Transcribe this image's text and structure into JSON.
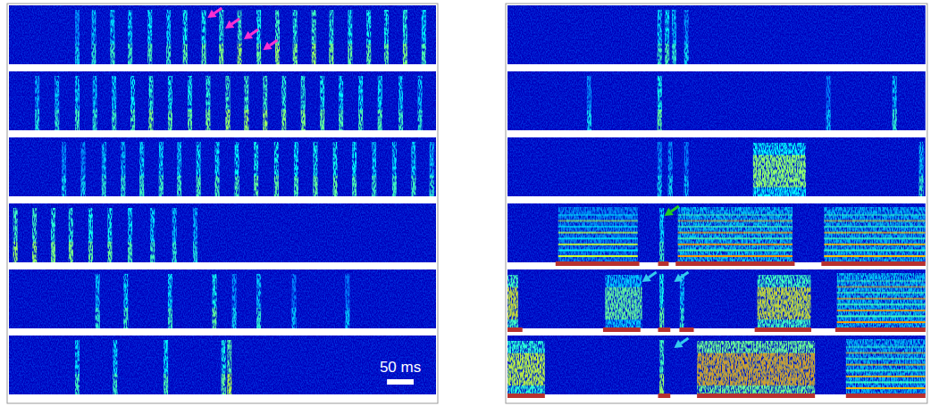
{
  "chart_data": [
    {
      "type": "spectrogram",
      "xlim": [
        0,
        800
      ],
      "tick_labels": false,
      "scale_bar": {
        "value": 50,
        "label": "50 ms"
      },
      "rows": [
        {
          "pulse_times": [
            128,
            159,
            194,
            227,
            264,
            299,
            330,
            365,
            398,
            432,
            468,
            503,
            536,
            571,
            604,
            639,
            674,
            707,
            742,
            777
          ],
          "pulse_levels": [
            0.35,
            0.45,
            0.5,
            0.5,
            0.55,
            0.5,
            0.6,
            0.6,
            0.65,
            0.7,
            0.6,
            0.7,
            0.65,
            0.7,
            0.65,
            0.6,
            0.6,
            0.6,
            0.65,
            0.55
          ],
          "arrows": [
            {
              "time": 372,
              "color": "#ff2fd0"
            },
            {
              "time": 405,
              "color": "#ff2fd0"
            },
            {
              "time": 440,
              "color": "#ff2fd0"
            },
            {
              "time": 476,
              "color": "#ff2fd0"
            }
          ]
        },
        {
          "pulse_times": [
            53,
            90,
            128,
            161,
            197,
            232,
            266,
            302,
            339,
            373,
            410,
            445,
            480,
            515,
            551,
            587,
            622,
            659,
            695,
            734,
            770
          ],
          "pulse_levels": [
            0.4,
            0.45,
            0.5,
            0.45,
            0.5,
            0.55,
            0.65,
            0.6,
            0.6,
            0.65,
            0.7,
            0.7,
            0.7,
            0.65,
            0.65,
            0.6,
            0.55,
            0.55,
            0.55,
            0.5,
            0.45
          ]
        },
        {
          "pulse_times": [
            103,
            139,
            178,
            214,
            249,
            285,
            319,
            355,
            390,
            427,
            463,
            501,
            538,
            574,
            611,
            647,
            684,
            722,
            758,
            792
          ],
          "pulse_levels": [
            0.35,
            0.35,
            0.45,
            0.45,
            0.5,
            0.5,
            0.5,
            0.55,
            0.55,
            0.55,
            0.6,
            0.6,
            0.55,
            0.6,
            0.6,
            0.55,
            0.5,
            0.5,
            0.5,
            0.45
          ]
        },
        {
          "pulse_times": [
            12,
            48,
            83,
            116,
            153,
            189,
            227,
            269,
            310,
            349
          ],
          "pulse_levels": [
            0.7,
            0.7,
            0.65,
            0.65,
            0.6,
            0.6,
            0.55,
            0.5,
            0.45,
            0.4
          ]
        },
        {
          "pulse_times": [
            166,
            219,
            302,
            385,
            422,
            468,
            534,
            634
          ],
          "pulse_levels": [
            0.45,
            0.5,
            0.5,
            0.6,
            0.35,
            0.45,
            0.3,
            0.3
          ]
        },
        {
          "pulse_times": [
            128,
            199,
            294,
            402,
            413
          ],
          "pulse_levels": [
            0.5,
            0.5,
            0.55,
            0.6,
            0.75
          ]
        }
      ]
    },
    {
      "type": "spectrogram",
      "xlim": [
        0,
        783
      ],
      "tick_labels": false,
      "rows": [
        {
          "pulse_times": [
            285,
            299,
            312,
            335
          ],
          "pulse_levels": [
            0.5,
            0.55,
            0.45,
            0.35
          ]
        },
        {
          "pulse_times": [
            153,
            285,
            601,
            725
          ],
          "pulse_levels": [
            0.35,
            0.6,
            0.3,
            0.45
          ]
        },
        {
          "pulse_times": [
            285,
            305,
            335,
            775
          ],
          "pulse_levels": [
            0.35,
            0.35,
            0.3,
            0.45
          ],
          "calls": [
            {
              "start": 460,
              "end": 559,
              "kind": "noise",
              "level": 0.55
            }
          ]
        },
        {
          "pulse_times": [
            289
          ],
          "pulse_levels": [
            0.5
          ],
          "calls": [
            {
              "start": 95,
              "end": 244,
              "kind": "harmonic",
              "level": 0.55
            },
            {
              "start": 319,
              "end": 534,
              "kind": "harmonic",
              "level": 0.75
            },
            {
              "start": 593,
              "end": 783,
              "kind": "harmonic",
              "level": 0.7
            }
          ],
          "marked_segments": [
            [
              90,
              247
            ],
            [
              282,
              302
            ],
            [
              315,
              538
            ],
            [
              588,
              783
            ]
          ],
          "arrows": [
            {
              "time": 294,
              "color": "#22cc22"
            }
          ]
        },
        {
          "pulse_times": [
            289,
            327
          ],
          "pulse_levels": [
            0.6,
            0.45
          ],
          "calls": [
            {
              "start": 0,
              "end": 20,
              "kind": "noise",
              "level": 0.7
            },
            {
              "start": 183,
              "end": 252,
              "kind": "noise",
              "level": 0.45
            },
            {
              "start": 468,
              "end": 568,
              "kind": "noise",
              "level": 0.7
            },
            {
              "start": 617,
              "end": 783,
              "kind": "harmonic",
              "level": 0.75
            }
          ],
          "marked_segments": [
            [
              0,
              28
            ],
            [
              179,
              249
            ],
            [
              282,
              305
            ],
            [
              322,
              349
            ],
            [
              463,
              569
            ],
            [
              614,
              783
            ]
          ],
          "arrows": [
            {
              "time": 252,
              "color": "#33ccee"
            },
            {
              "time": 312,
              "color": "#33ccee"
            }
          ]
        },
        {
          "pulse_times": [
            289
          ],
          "pulse_levels": [
            0.7
          ],
          "calls": [
            {
              "start": 0,
              "end": 70,
              "kind": "noise",
              "level": 0.65
            },
            {
              "start": 355,
              "end": 576,
              "kind": "noise",
              "level": 0.8
            },
            {
              "start": 634,
              "end": 783,
              "kind": "harmonic",
              "level": 0.7
            }
          ],
          "marked_segments": [
            [
              0,
              70
            ],
            [
              282,
              305
            ],
            [
              355,
              576
            ],
            [
              634,
              783
            ]
          ],
          "arrows": [
            {
              "time": 312,
              "color": "#33ccee"
            }
          ]
        }
      ]
    }
  ]
}
